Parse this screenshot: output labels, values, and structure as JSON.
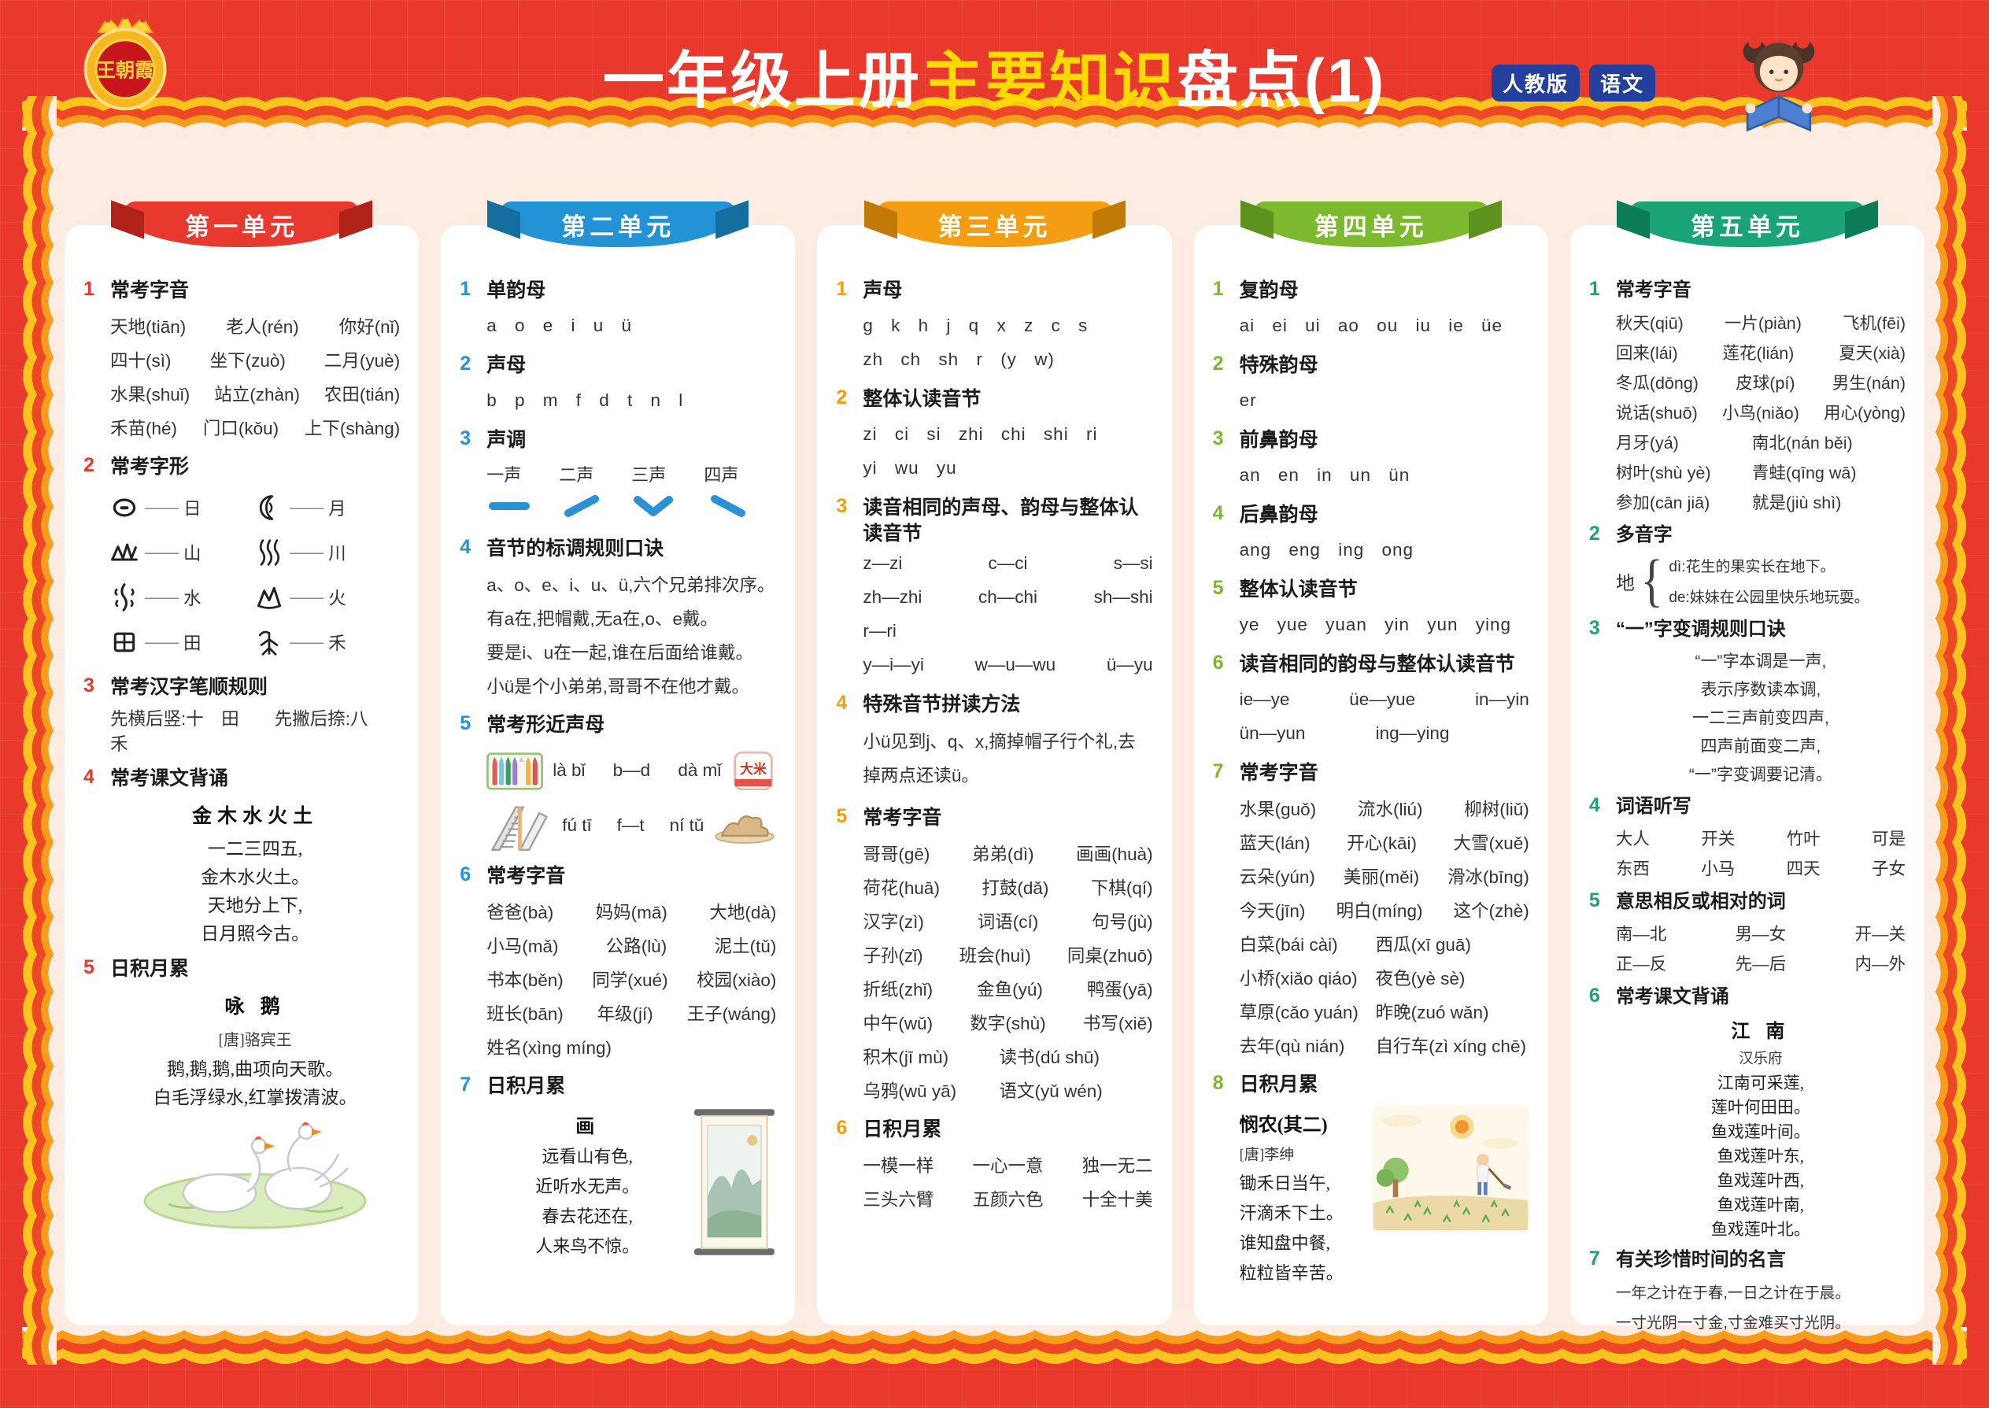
{
  "header": {
    "logo_text": "王朝霞",
    "title_white1": "一年级上册",
    "title_yellow": "主要知识",
    "title_white2": "盘点(1)",
    "badge1": "人教版",
    "badge2": "语文",
    "title_yellow_color": "#ffd900",
    "badge_bg": "#243f9c"
  },
  "colors": {
    "page_bg": "#e8392c",
    "panel_bg": "#fdece2",
    "wave_gold": "#fcc21d",
    "wave_red": "#ee4726",
    "wave_orange": "#f79c1b",
    "tone_blue": "#2a92d4"
  },
  "units": [
    {
      "name": "第一单元",
      "color": "#e8392e",
      "fold": "#b02318",
      "sections": [
        {
          "num": "1",
          "title": "常考字音",
          "lines": [
            {
              "t": "cols",
              "i": [
                "天地(tiān)",
                "老人(rén)",
                "你好(nǐ)"
              ]
            },
            {
              "t": "cols",
              "i": [
                "四十(sì)",
                "坐下(zuò)",
                "二月(yuè)"
              ]
            },
            {
              "t": "cols",
              "i": [
                "水果(shuǐ)",
                "站立(zhàn)",
                "农田(tián)"
              ]
            },
            {
              "t": "cols",
              "i": [
                "禾苗(hé)",
                "门口(kǒu)",
                "上下(shàng)"
              ]
            }
          ]
        },
        {
          "num": "2",
          "title": "常考字形",
          "lines": [
            {
              "t": "picto",
              "rows": [
                {
                  "li": "sun-pictograph",
                  "lc": "日",
                  "ri": "moon-pictograph",
                  "rc": "月"
                },
                {
                  "li": "mountain-pictograph",
                  "lc": "山",
                  "ri": "river-pictograph",
                  "rc": "川"
                },
                {
                  "li": "water-pictograph",
                  "lc": "水",
                  "ri": "fire-pictograph",
                  "rc": "火"
                },
                {
                  "li": "field-pictograph",
                  "lc": "田",
                  "ri": "grain-pictograph",
                  "rc": "禾"
                }
              ]
            }
          ]
        },
        {
          "num": "3",
          "title": "常考汉字笔顺规则",
          "lines": [
            {
              "t": "text",
              "x": "先横后竖:十　田　　先撇后捺:八　禾"
            }
          ]
        },
        {
          "num": "4",
          "title": "常考课文背诵",
          "lines": [
            {
              "t": "ptitle",
              "x": "金木水火土"
            },
            {
              "t": "kai",
              "x": "一二三四五,"
            },
            {
              "t": "kai",
              "x": "金木水火土。"
            },
            {
              "t": "kai",
              "x": "天地分上下,"
            },
            {
              "t": "kai",
              "x": "日月照今古。"
            }
          ]
        },
        {
          "num": "5",
          "title": "日积月累",
          "lines": [
            {
              "t": "ptitle",
              "x": "咏  鹅"
            },
            {
              "t": "author",
              "x": "[唐]骆宾王"
            },
            {
              "t": "kai",
              "x": "鹅,鹅,鹅,曲项向天歌。"
            },
            {
              "t": "kai",
              "x": "白毛浮绿水,红掌拨清波。"
            },
            {
              "t": "illus",
              "name": "geese-pond"
            }
          ]
        }
      ]
    },
    {
      "name": "第二单元",
      "color": "#2493d6",
      "fold": "#156f9e",
      "sections": [
        {
          "num": "1",
          "title": "单韵母",
          "lines": [
            {
              "t": "letters",
              "x": "a  o  e  i  u  ü"
            }
          ]
        },
        {
          "num": "2",
          "title": "声母",
          "lines": [
            {
              "t": "letters",
              "x": "b  p  m  f  d  t  n  l"
            }
          ]
        },
        {
          "num": "3",
          "title": "声调",
          "lines": [
            {
              "t": "tones",
              "labels": [
                "一声",
                "二声",
                "三声",
                "四声"
              ],
              "marks": [
                "tone-flat",
                "tone-rising",
                "tone-dipping",
                "tone-falling"
              ]
            }
          ]
        },
        {
          "num": "4",
          "title": "音节的标调规则口诀",
          "lines": [
            {
              "t": "text",
              "x": "a、o、e、i、u、ü,六个兄弟排次序。"
            },
            {
              "t": "text",
              "x": "有a在,把帽戴,无a在,o、e戴。"
            },
            {
              "t": "text",
              "x": "要是i、u在一起,谁在后面给谁戴。"
            },
            {
              "t": "text",
              "x": "小ü是个小弟弟,哥哥不在他才戴。"
            }
          ]
        },
        {
          "num": "5",
          "title": "常考形近声母",
          "lines": [
            {
              "t": "imgrow",
              "l": "crayons-box",
              "i": [
                "là bǐ",
                "b—d",
                "dà mǐ"
              ],
              "r": "rice-bag"
            },
            {
              "t": "imgrow",
              "l": "escalator",
              "i": [
                "fú tī",
                "f—t",
                "ní tǔ"
              ],
              "r": "mud-pile"
            }
          ]
        },
        {
          "num": "6",
          "title": "常考字音",
          "lines": [
            {
              "t": "cols",
              "i": [
                "爸爸(bà)",
                "妈妈(mā)",
                "大地(dà)"
              ]
            },
            {
              "t": "cols",
              "i": [
                "小马(mǎ)",
                "公路(lù)",
                "泥土(tǔ)"
              ]
            },
            {
              "t": "cols",
              "i": [
                "书本(běn)",
                "同学(xué)",
                "校园(xiào)"
              ]
            },
            {
              "t": "cols",
              "i": [
                "班长(bān)",
                "年级(jí)",
                "王子(wáng)"
              ]
            },
            {
              "t": "cols",
              "i": [
                "姓名(xìng míng)"
              ]
            }
          ]
        },
        {
          "num": "7",
          "title": "日积月累",
          "lines": [
            {
              "t": "poemimg",
              "align": "center",
              "title": "画",
              "lines": [
                "远看山有色,",
                "近听水无声。",
                "春去花还在,",
                "人来鸟不惊。"
              ],
              "img": "scroll-painting"
            }
          ]
        }
      ]
    },
    {
      "name": "第三单元",
      "color": "#f59d12",
      "fold": "#c17a08",
      "sections": [
        {
          "num": "1",
          "title": "声母",
          "lines": [
            {
              "t": "letters",
              "x": "g  k  h  j  q  x  z  c  s"
            },
            {
              "t": "letters",
              "x": "zh  ch  sh  r  (y  w)"
            }
          ]
        },
        {
          "num": "2",
          "title": "整体认读音节",
          "lines": [
            {
              "t": "letters",
              "x": "zi  ci  si  zhi  chi  shi  ri"
            },
            {
              "t": "letters",
              "x": "yi  wu  yu"
            }
          ]
        },
        {
          "num": "3",
          "title": "读音相同的声母、韵母与整体认读音节",
          "lines": [
            {
              "t": "cols",
              "i": [
                "z—zi",
                "c—ci",
                "s—si"
              ]
            },
            {
              "t": "cols",
              "i": [
                "zh—zhi",
                "ch—chi",
                "sh—shi"
              ]
            },
            {
              "t": "cols",
              "i": [
                "r—ri"
              ]
            },
            {
              "t": "cols",
              "i": [
                "y—i—yi",
                "w—u—wu",
                "ü—yu"
              ]
            }
          ]
        },
        {
          "num": "4",
          "title": "特殊音节拼读方法",
          "lines": [
            {
              "t": "wrap",
              "x": "小ü见到j、q、x,摘掉帽子行个礼,去掉两点还读ü。"
            }
          ]
        },
        {
          "num": "5",
          "title": "常考字音",
          "lines": [
            {
              "t": "cols",
              "i": [
                "哥哥(gē)",
                "弟弟(dì)",
                "画画(huà)"
              ]
            },
            {
              "t": "cols",
              "i": [
                "荷花(huā)",
                "打鼓(dǎ)",
                "下棋(qí)"
              ]
            },
            {
              "t": "cols",
              "i": [
                "汉字(zì)",
                "词语(cí)",
                "句号(jù)"
              ]
            },
            {
              "t": "cols",
              "i": [
                "子孙(zǐ)",
                "班会(huì)",
                "同桌(zhuō)"
              ]
            },
            {
              "t": "cols",
              "i": [
                "折纸(zhǐ)",
                "金鱼(yú)",
                "鸭蛋(yā)"
              ]
            },
            {
              "t": "cols",
              "i": [
                "中午(wǔ)",
                "数字(shù)",
                "书写(xiě)"
              ]
            },
            {
              "t": "cols2",
              "i": [
                "积木(jī mù)",
                "读书(dú shū)"
              ]
            },
            {
              "t": "cols2",
              "i": [
                "乌鸦(wū yā)",
                "语文(yǔ wén)"
              ]
            }
          ]
        },
        {
          "num": "6",
          "title": "日积月累",
          "lines": [
            {
              "t": "cols",
              "i": [
                "一模一样",
                "一心一意",
                "独一无二"
              ]
            },
            {
              "t": "cols",
              "i": [
                "三头六臂",
                "五颜六色",
                "十全十美"
              ]
            }
          ]
        }
      ]
    },
    {
      "name": "第四单元",
      "color": "#7cb92e",
      "fold": "#5d921c",
      "sections": [
        {
          "num": "1",
          "title": "复韵母",
          "lines": [
            {
              "t": "letters",
              "x": "ai  ei  ui  ao  ou  iu  ie  üe"
            }
          ]
        },
        {
          "num": "2",
          "title": "特殊韵母",
          "lines": [
            {
              "t": "letters",
              "x": "er"
            }
          ]
        },
        {
          "num": "3",
          "title": "前鼻韵母",
          "lines": [
            {
              "t": "letters",
              "x": "an  en  in  un  ün"
            }
          ]
        },
        {
          "num": "4",
          "title": "后鼻韵母",
          "lines": [
            {
              "t": "letters",
              "x": "ang  eng  ing  ong"
            }
          ]
        },
        {
          "num": "5",
          "title": "整体认读音节",
          "lines": [
            {
              "t": "letters",
              "x": "ye  yue  yuan  yin  yun  ying"
            }
          ]
        },
        {
          "num": "6",
          "title": "读音相同的韵母与整体认读音节",
          "lines": [
            {
              "t": "cols",
              "i": [
                "ie—ye",
                "üe—yue",
                "in—yin"
              ]
            },
            {
              "t": "cols2",
              "i": [
                "ün—yun",
                "ing—ying"
              ]
            }
          ]
        },
        {
          "num": "7",
          "title": "常考字音",
          "lines": [
            {
              "t": "cols",
              "i": [
                "水果(guǒ)",
                "流水(liú)",
                "柳树(liǔ)"
              ]
            },
            {
              "t": "cols",
              "i": [
                "蓝天(lán)",
                "开心(kāi)",
                "大雪(xuě)"
              ]
            },
            {
              "t": "cols",
              "i": [
                "云朵(yún)",
                "美丽(měi)",
                "滑冰(bīng)"
              ]
            },
            {
              "t": "cols",
              "i": [
                "今天(jīn)",
                "明白(míng)",
                "这个(zhè)"
              ]
            },
            {
              "t": "cols2",
              "i": [
                "白菜(bái cài)",
                "西瓜(xī guā)"
              ]
            },
            {
              "t": "cols2",
              "i": [
                "小桥(xiǎo qiáo)",
                "夜色(yè sè)"
              ]
            },
            {
              "t": "cols2",
              "i": [
                "草原(cǎo yuán)",
                "昨晚(zuó wǎn)"
              ]
            },
            {
              "t": "cols2",
              "i": [
                "去年(qù nián)",
                "自行车(zì xíng chē)"
              ]
            }
          ]
        },
        {
          "num": "8",
          "title": "日积月累",
          "lines": [
            {
              "t": "poemimg",
              "align": "left",
              "title": "悯农(其二)",
              "author": "[唐]李绅",
              "lines": [
                "锄禾日当午,",
                "汗滴禾下土。",
                "谁知盘中餐,",
                "粒粒皆辛苦。"
              ],
              "img": "farmer-field"
            }
          ]
        }
      ]
    },
    {
      "name": "第五单元",
      "color": "#19a377",
      "fold": "#0c7b58",
      "sections": [
        {
          "num": "1",
          "title": "常考字音",
          "lines": [
            {
              "t": "cols",
              "i": [
                "秋天(qiū)",
                "一片(piàn)",
                "飞机(fēi)"
              ]
            },
            {
              "t": "cols",
              "i": [
                "回来(lái)",
                "莲花(lián)",
                "夏天(xià)"
              ]
            },
            {
              "t": "cols",
              "i": [
                "冬瓜(dōng)",
                "皮球(pí)",
                "男生(nán)"
              ]
            },
            {
              "t": "cols",
              "i": [
                "说话(shuō)",
                "小鸟(niǎo)",
                "用心(yòng)"
              ]
            },
            {
              "t": "cols2",
              "i": [
                "月牙(yá)",
                "南北(nán běi)"
              ]
            },
            {
              "t": "cols2",
              "i": [
                "树叶(shù yè)",
                "青蛙(qīng wā)"
              ]
            },
            {
              "t": "cols2",
              "i": [
                "参加(cān jiā)",
                "就是(jiù shì)"
              ]
            }
          ]
        },
        {
          "num": "2",
          "title": "多音字",
          "lines": [
            {
              "t": "brace",
              "c": "地",
              "top": "dì:花生的果实长在地下。",
              "bot": "de:妹妹在公园里快乐地玩耍。"
            }
          ]
        },
        {
          "num": "3",
          "title": "“一”字变调规则口诀",
          "lines": [
            {
              "t": "center",
              "x": "“一”字本调是一声,"
            },
            {
              "t": "center",
              "x": "表示序数读本调,"
            },
            {
              "t": "center",
              "x": "一二三声前变四声,"
            },
            {
              "t": "center",
              "x": "四声前面变二声,"
            },
            {
              "t": "center",
              "x": "“一”字变调要记清。"
            }
          ]
        },
        {
          "num": "4",
          "title": "词语听写",
          "lines": [
            {
              "t": "cols",
              "i": [
                "大人",
                "开关",
                "竹叶",
                "可是"
              ]
            },
            {
              "t": "cols",
              "i": [
                "东西",
                "小马",
                "四天",
                "子女"
              ]
            }
          ]
        },
        {
          "num": "5",
          "title": "意思相反或相对的词",
          "lines": [
            {
              "t": "cols",
              "i": [
                "南—北",
                "男—女",
                "开—关"
              ]
            },
            {
              "t": "cols",
              "i": [
                "正—反",
                "先—后",
                "内—外"
              ]
            }
          ]
        },
        {
          "num": "6",
          "title": "常考课文背诵",
          "lines": [
            {
              "t": "ptitle",
              "x": "江  南"
            },
            {
              "t": "author",
              "x": "汉乐府"
            },
            {
              "t": "kai",
              "x": "江南可采莲,"
            },
            {
              "t": "kai",
              "x": "莲叶何田田。"
            },
            {
              "t": "kai",
              "x": "鱼戏莲叶间。"
            },
            {
              "t": "kai",
              "x": "鱼戏莲叶东,"
            },
            {
              "t": "kai",
              "x": "鱼戏莲叶西,"
            },
            {
              "t": "kai",
              "x": "鱼戏莲叶南,"
            },
            {
              "t": "kai",
              "x": "鱼戏莲叶北。"
            }
          ]
        },
        {
          "num": "7",
          "title": "有关珍惜时间的名言",
          "lines": [
            {
              "t": "smalltxt",
              "x": "一年之计在于春,一日之计在于晨。"
            },
            {
              "t": "smalltxt",
              "x": "一寸光阴一寸金,寸金难买寸光阴。"
            }
          ]
        }
      ]
    }
  ]
}
